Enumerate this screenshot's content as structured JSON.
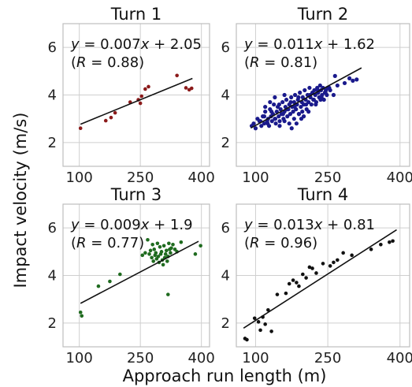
{
  "figure": {
    "xlabel": "Approach run length (m)",
    "ylabel": "Impact velocity (m/s)"
  },
  "chart_data": [
    {
      "type": "scatter",
      "title": "Turn 1",
      "equation": {
        "y": "y",
        "eq": " = 0.007",
        "x": "x",
        "rest": " + 2.05",
        "r_open": "(",
        "r": "R",
        "r_val": " = 0.88)"
      },
      "color": "#8b1a1a",
      "xlim": [
        60,
        420
      ],
      "ylim": [
        1,
        7
      ],
      "xticks": [
        100,
        250,
        400
      ],
      "yticks": [
        2,
        4,
        6
      ],
      "grid": true,
      "fit": {
        "slope": 0.007,
        "intercept": 2.05,
        "x_range": [
          103,
          378
        ]
      },
      "x": [
        103,
        165,
        178,
        188,
        225,
        245,
        250,
        253,
        262,
        270,
        340,
        362,
        370,
        376
      ],
      "y": [
        2.6,
        2.92,
        3.05,
        3.25,
        3.7,
        3.8,
        3.65,
        3.95,
        4.25,
        4.35,
        4.82,
        4.3,
        4.22,
        4.28
      ]
    },
    {
      "type": "scatter",
      "title": "Turn 2",
      "equation": {
        "y": "y",
        "eq": " = 0.011",
        "x": "x",
        "rest": " + 1.62",
        "r_open": "(",
        "r": "R",
        "r_val": " = 0.81)"
      },
      "color": "#1a1a8c",
      "xlim": [
        60,
        420
      ],
      "ylim": [
        1,
        7
      ],
      "xticks": [
        100,
        250,
        400
      ],
      "yticks": [
        2,
        4,
        6
      ],
      "grid": true,
      "fit": {
        "slope": 0.011,
        "intercept": 1.62,
        "x_range": [
          90,
          320
        ]
      },
      "x": [
        92,
        96,
        100,
        104,
        108,
        112,
        115,
        118,
        120,
        124,
        126,
        128,
        130,
        132,
        134,
        136,
        138,
        140,
        142,
        144,
        146,
        148,
        150,
        152,
        154,
        156,
        158,
        160,
        162,
        164,
        166,
        168,
        170,
        172,
        174,
        176,
        178,
        180,
        182,
        184,
        186,
        188,
        190,
        192,
        194,
        196,
        198,
        200,
        202,
        204,
        206,
        208,
        210,
        212,
        214,
        216,
        218,
        220,
        222,
        224,
        226,
        228,
        230,
        232,
        234,
        236,
        238,
        240,
        242,
        244,
        246,
        248,
        250,
        110,
        118,
        125,
        133,
        141,
        149,
        157,
        165,
        173,
        181,
        189,
        197,
        205,
        213,
        221,
        229,
        237,
        245,
        253,
        150,
        160,
        170,
        180,
        190,
        200,
        120,
        130,
        140,
        160,
        175,
        185,
        195,
        210,
        225,
        235,
        255,
        262,
        270,
        285,
        295,
        302,
        310,
        265
      ],
      "y": [
        2.7,
        2.8,
        2.6,
        3.0,
        2.9,
        2.7,
        3.1,
        2.8,
        3.3,
        2.9,
        3.0,
        2.7,
        3.4,
        3.1,
        2.9,
        3.2,
        3.6,
        3.0,
        2.8,
        3.3,
        3.5,
        3.1,
        2.9,
        3.4,
        3.2,
        3.7,
        3.0,
        3.3,
        3.5,
        3.8,
        3.1,
        3.4,
        3.6,
        3.2,
        3.9,
        3.5,
        3.3,
        3.7,
        4.0,
        3.4,
        3.6,
        3.8,
        3.2,
        4.1,
        3.5,
        3.7,
        3.9,
        3.6,
        4.2,
        3.8,
        3.4,
        4.0,
        3.7,
        4.3,
        3.9,
        3.6,
        4.1,
        3.8,
        4.2,
        4.0,
        3.7,
        4.3,
        4.1,
        3.9,
        4.4,
        4.2,
        4.0,
        4.3,
        3.8,
        4.1,
        4.2,
        4.0,
        4.3,
        2.9,
        3.1,
        2.8,
        3.3,
        3.0,
        3.6,
        3.2,
        3.4,
        3.7,
        3.5,
        3.9,
        3.3,
        3.6,
        4.0,
        3.8,
        4.2,
        3.9,
        4.1,
        4.3,
        2.7,
        2.9,
        2.8,
        3.0,
        3.2,
        3.1,
        3.5,
        3.7,
        3.9,
        4.0,
        2.6,
        2.8,
        3.0,
        3.3,
        3.6,
        3.8,
        4.2,
        4.0,
        4.4,
        4.5,
        4.7,
        4.6,
        4.65,
        4.8
      ],
      "marker_size": 2.6
    },
    {
      "type": "scatter",
      "title": "Turn 3",
      "equation": {
        "y": "y",
        "eq": " = 0.009",
        "x": "x",
        "rest": " + 1.9",
        "r_open": "(",
        "r": "R",
        "r_val": " = 0.77)"
      },
      "color": "#1f6b1f",
      "xlim": [
        60,
        420
      ],
      "ylim": [
        1,
        7
      ],
      "xticks": [
        100,
        250,
        400
      ],
      "yticks": [
        2,
        4,
        6
      ],
      "grid": true,
      "fit": {
        "slope": 0.009,
        "intercept": 1.9,
        "x_range": [
          103,
          393
        ]
      },
      "x": [
        103,
        106,
        147,
        175,
        200,
        255,
        262,
        268,
        272,
        275,
        278,
        280,
        282,
        284,
        286,
        288,
        290,
        292,
        294,
        296,
        298,
        300,
        302,
        304,
        306,
        308,
        310,
        312,
        314,
        316,
        318,
        320,
        322,
        324,
        326,
        330,
        335,
        340,
        350,
        385,
        398,
        318
      ],
      "y": [
        2.45,
        2.3,
        3.55,
        3.75,
        4.05,
        4.85,
        4.95,
        5.5,
        4.9,
        5.05,
        4.75,
        5.3,
        4.6,
        5.1,
        4.85,
        4.95,
        4.7,
        5.35,
        4.8,
        4.55,
        5.2,
        4.9,
        5.0,
        4.65,
        4.45,
        5.25,
        4.75,
        4.9,
        5.05,
        4.6,
        4.8,
        5.35,
        5.1,
        4.95,
        5.15,
        5.3,
        5.1,
        5.0,
        5.4,
        4.9,
        5.25,
        3.2
      ]
    },
    {
      "type": "scatter",
      "title": "Turn 4",
      "equation": {
        "y": "y",
        "eq": " = 0.013",
        "x": "x",
        "rest": " + 0.81",
        "r_open": "(",
        "r": "R",
        "r_val": " = 0.96)"
      },
      "color": "#111111",
      "xlim": [
        60,
        420
      ],
      "ylim": [
        1,
        7
      ],
      "xticks": [
        100,
        250,
        400
      ],
      "yticks": [
        2,
        4,
        6
      ],
      "grid": true,
      "fit": {
        "slope": 0.013,
        "intercept": 0.81,
        "x_range": [
          75,
          393
        ]
      },
      "x": [
        78,
        82,
        98,
        106,
        110,
        115,
        120,
        126,
        133,
        145,
        163,
        170,
        178,
        185,
        190,
        198,
        205,
        212,
        218,
        226,
        240,
        255,
        262,
        270,
        282,
        300,
        340,
        360,
        378,
        385
      ],
      "y": [
        1.35,
        1.3,
        2.2,
        2.05,
        1.7,
        2.25,
        1.95,
        2.55,
        1.65,
        3.2,
        3.25,
        3.65,
        3.8,
        3.7,
        3.55,
        4.05,
        3.9,
        4.35,
        4.3,
        4.1,
        4.5,
        4.4,
        4.55,
        4.65,
        4.95,
        4.85,
        5.1,
        5.3,
        5.4,
        5.45
      ]
    }
  ]
}
